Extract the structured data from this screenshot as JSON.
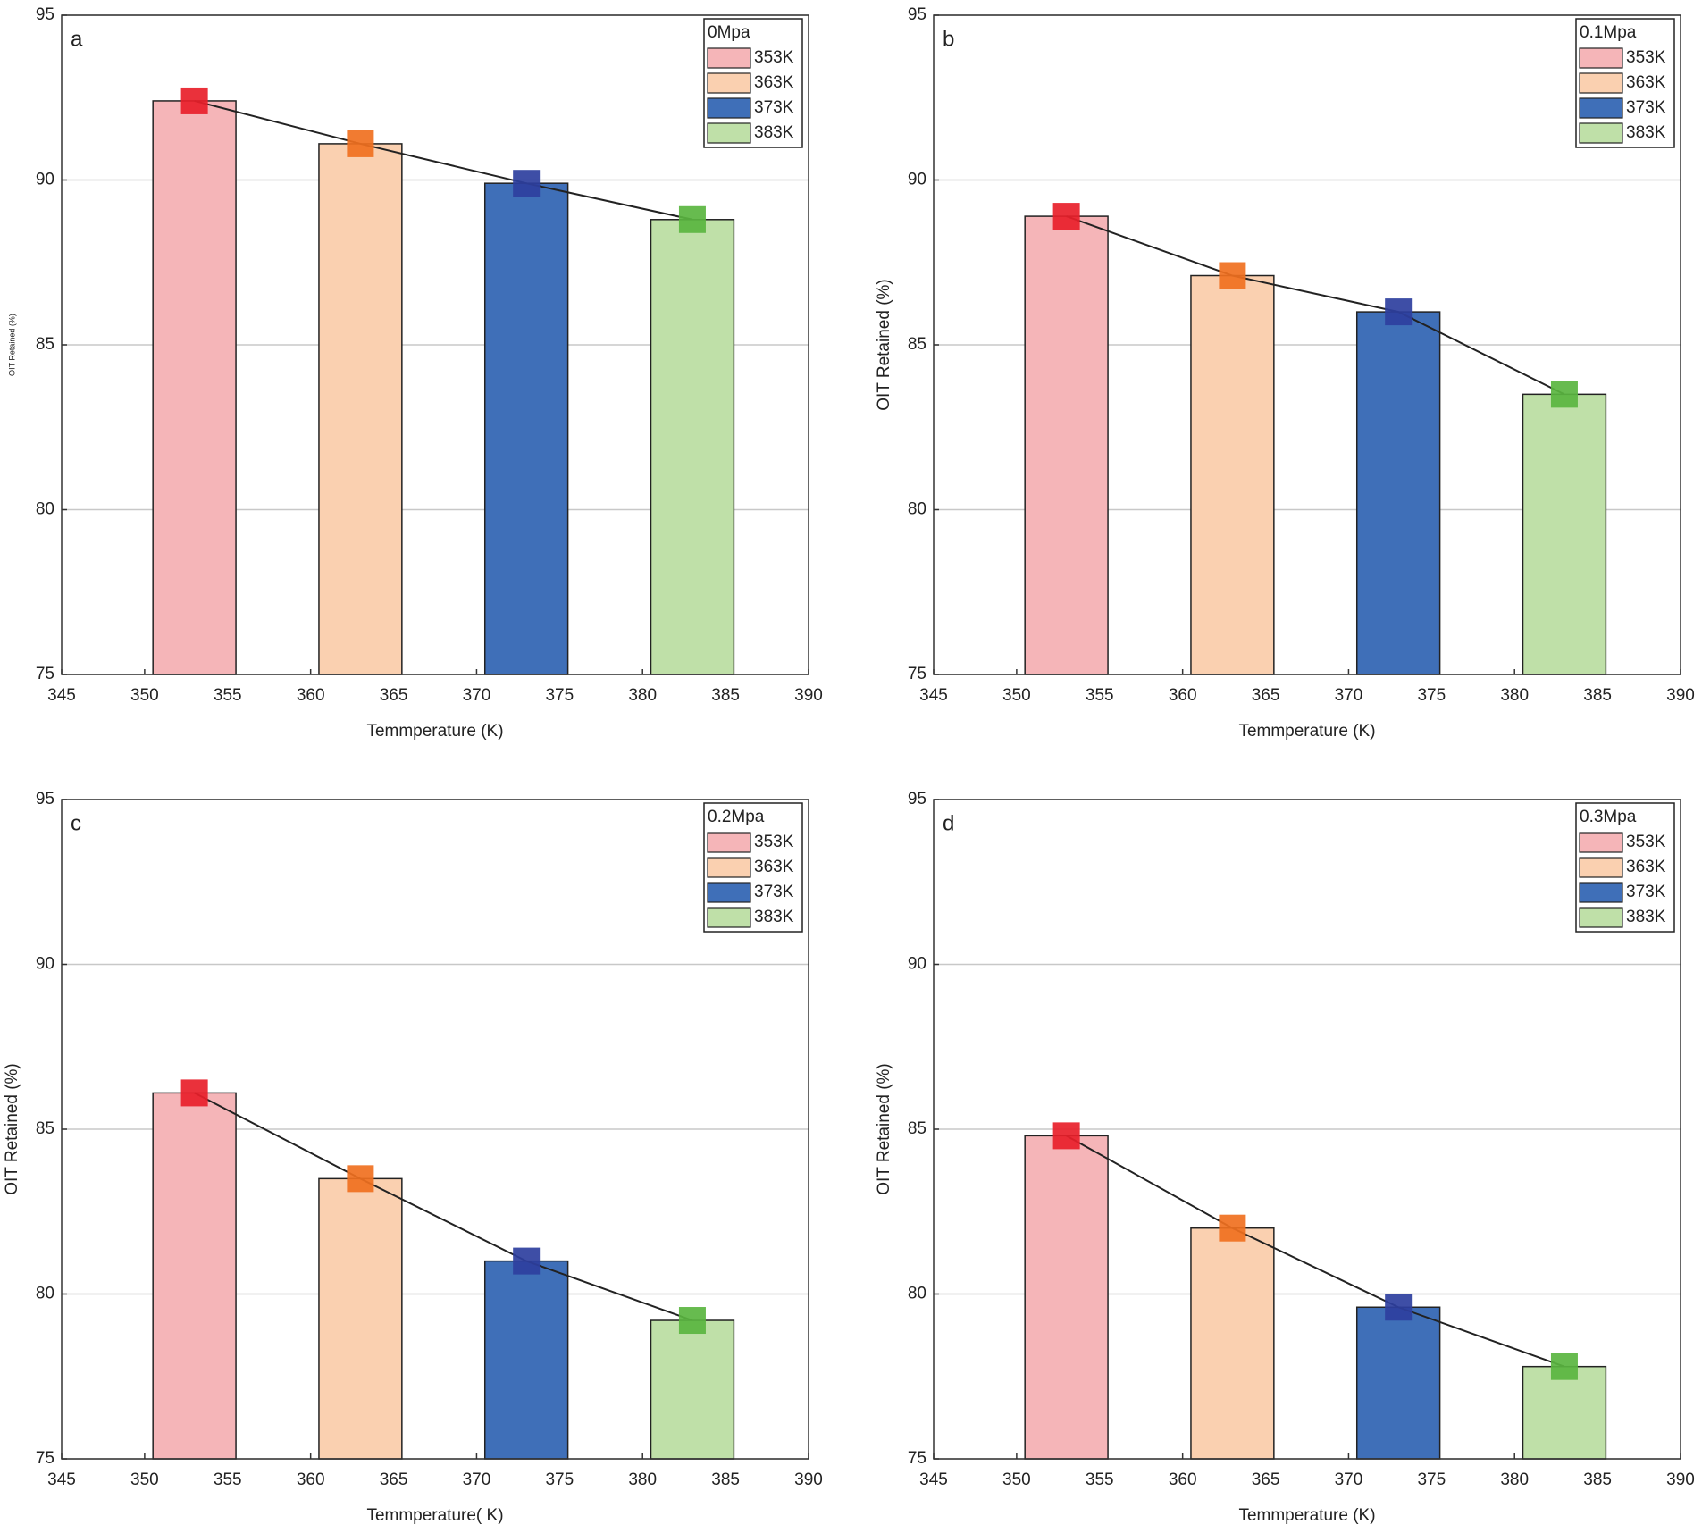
{
  "chart_data": [
    {
      "type": "bar",
      "panel_label": "a",
      "legend_title": "0Mpa",
      "legend": "upper right",
      "grid": true,
      "xlabel": "Temmperature (K)",
      "ylabel": "OIT Retained (%)",
      "x": [
        353,
        363,
        373,
        383
      ],
      "values": [
        92.4,
        91.1,
        89.9,
        88.8
      ],
      "legend_labels": [
        "353K",
        "363K",
        "373K",
        "383K"
      ],
      "colors": [
        "#f5b5b8",
        "#fad0b0",
        "#3f6fb8",
        "#bfe0a8"
      ],
      "marker_colors": [
        "#e8202a",
        "#f07020",
        "#2e3f9e",
        "#5ab540"
      ],
      "xlim": [
        345,
        390
      ],
      "xticks": [
        345,
        350,
        355,
        360,
        365,
        370,
        375,
        380,
        385,
        390
      ],
      "ylim": [
        75,
        95
      ],
      "yticks": [
        75,
        80,
        85,
        90,
        95
      ]
    },
    {
      "type": "bar",
      "panel_label": "b",
      "legend_title": "0.1Mpa",
      "legend": "upper right",
      "grid": true,
      "xlabel": "Temmperature (K)",
      "ylabel": "OIT Retained (%)",
      "x": [
        353,
        363,
        373,
        383
      ],
      "values": [
        88.9,
        87.1,
        86.0,
        83.5
      ],
      "legend_labels": [
        "353K",
        "363K",
        "373K",
        "383K"
      ],
      "colors": [
        "#f5b5b8",
        "#fad0b0",
        "#3f6fb8",
        "#bfe0a8"
      ],
      "marker_colors": [
        "#e8202a",
        "#f07020",
        "#2e3f9e",
        "#5ab540"
      ],
      "xlim": [
        345,
        390
      ],
      "xticks": [
        345,
        350,
        355,
        360,
        365,
        370,
        375,
        380,
        385,
        390
      ],
      "ylim": [
        75,
        95
      ],
      "yticks": [
        75,
        80,
        85,
        90,
        95
      ]
    },
    {
      "type": "bar",
      "panel_label": "c",
      "legend_title": "0.2Mpa",
      "legend": "upper right",
      "grid": true,
      "xlabel": "Temmperature( K)",
      "ylabel": "OIT Retained (%)",
      "x": [
        353,
        363,
        373,
        383
      ],
      "values": [
        86.1,
        83.5,
        81.0,
        79.2
      ],
      "legend_labels": [
        "353K",
        "363K",
        "373K",
        "383K"
      ],
      "colors": [
        "#f5b5b8",
        "#fad0b0",
        "#3f6fb8",
        "#bfe0a8"
      ],
      "marker_colors": [
        "#e8202a",
        "#f07020",
        "#2e3f9e",
        "#5ab540"
      ],
      "xlim": [
        345,
        390
      ],
      "xticks": [
        345,
        350,
        355,
        360,
        365,
        370,
        375,
        380,
        385,
        390
      ],
      "ylim": [
        75,
        95
      ],
      "yticks": [
        75,
        80,
        85,
        90,
        95
      ]
    },
    {
      "type": "bar",
      "panel_label": "d",
      "legend_title": "0.3Mpa",
      "legend": "upper right",
      "grid": true,
      "xlabel": "Temmperature (K)",
      "ylabel": "OIT Retained (%)",
      "x": [
        353,
        363,
        373,
        383
      ],
      "values": [
        84.8,
        82.0,
        79.6,
        77.8
      ],
      "legend_labels": [
        "353K",
        "363K",
        "373K",
        "383K"
      ],
      "colors": [
        "#f5b5b8",
        "#fad0b0",
        "#3f6fb8",
        "#bfe0a8"
      ],
      "marker_colors": [
        "#e8202a",
        "#f07020",
        "#2e3f9e",
        "#5ab540"
      ],
      "xlim": [
        345,
        390
      ],
      "xticks": [
        345,
        350,
        355,
        360,
        365,
        370,
        375,
        380,
        385,
        390
      ],
      "ylim": [
        75,
        95
      ],
      "yticks": [
        75,
        80,
        85,
        90,
        95
      ]
    }
  ]
}
